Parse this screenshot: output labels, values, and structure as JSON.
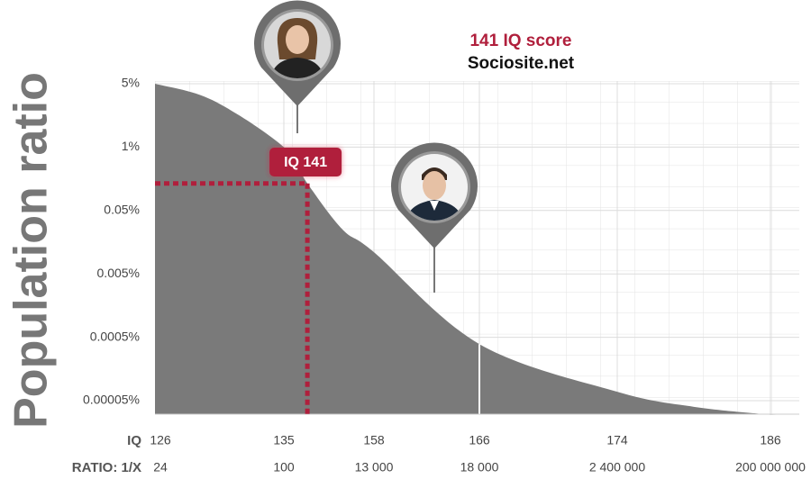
{
  "chart_data": {
    "type": "area",
    "title": "141 IQ score",
    "subtitle": "Sociosite.net",
    "ylabel": "Population ratio",
    "xlabel": "IQ",
    "x2label": "RATIO: 1/X",
    "x": [
      126,
      130,
      135,
      141,
      150,
      158,
      166,
      174,
      180,
      186
    ],
    "values": [
      5,
      3.3,
      1,
      0.18,
      0.025,
      0.011,
      0.00039,
      6.9e-05,
      4e-05,
      3e-05
    ],
    "color": "#7a7a7a",
    "log": true,
    "grid": true,
    "ylim": [
      3e-05,
      5
    ],
    "yticks": [
      {
        "value": 5,
        "label": "5%"
      },
      {
        "value": 1,
        "label": "1%"
      },
      {
        "value": 0.05,
        "label": "0.05%"
      },
      {
        "value": 0.005,
        "label": "0.005%"
      },
      {
        "value": 0.0005,
        "label": "0.0005%"
      },
      {
        "value": 5e-05,
        "label": "0.00005%"
      }
    ],
    "xticks": [
      126,
      135,
      158,
      166,
      174,
      186
    ],
    "x2ticks": [
      24,
      100,
      {
        "value": 13000,
        "label": "13 000"
      },
      {
        "value": 18000,
        "label": "18 000"
      },
      {
        "value": 2400000,
        "label": "2 400 000"
      },
      {
        "value": 200000000,
        "label": "200 000 000"
      }
    ],
    "highlight": {
      "x": 141,
      "label": "IQ 141"
    },
    "reference_line_x": 166
  }
}
